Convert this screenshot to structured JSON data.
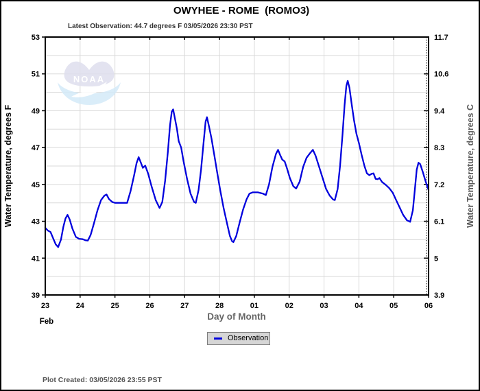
{
  "title": "OWYHEE - ROME  (ROMO3)",
  "subtitle": "Latest Observation: 44.7 degrees F 03/05/2026 23:30 PST",
  "footer": "Plot Created: 03/05/2026 23:55 PST",
  "watermark": "NOAA",
  "legend": {
    "label": "Observation"
  },
  "colors": {
    "line": "#0000dd",
    "grid": "#d9d9d9",
    "axis": "#000000",
    "muted_label": "#666666",
    "legend_bg": "#d6d6d6",
    "legend_border": "#7f7f7f",
    "logo_wings": "#dfdfee",
    "logo_wave": "#d4eaf8"
  },
  "chart_data": {
    "type": "line",
    "title": "OWYHEE - ROME  (ROMO3)",
    "xlabel": "Day of Month",
    "ylabel_left": "Water Temperature, degrees F",
    "ylabel_right": "Water Temperature, degrees C",
    "x_month_label": "Feb",
    "x_tick_labels": [
      "23",
      "24",
      "25",
      "26",
      "27",
      "28",
      "01",
      "02",
      "03",
      "04",
      "05",
      "06"
    ],
    "x_unit": "days since Feb 23 00:00",
    "xlim": [
      0,
      11
    ],
    "ylim_f": [
      39,
      53
    ],
    "y_ticks_f": [
      53,
      51,
      49,
      47,
      45,
      43,
      41,
      39
    ],
    "y_ticks_c": [
      "11.7",
      "10.6",
      "9.4",
      "8.3",
      "7.2",
      "6.1",
      "5",
      "3.9"
    ],
    "grid": true,
    "grid_step_f": 1,
    "legend_position": "bottom-center",
    "series": [
      {
        "name": "Observation",
        "color": "#0000dd",
        "points": [
          [
            0.0,
            42.65
          ],
          [
            0.07,
            42.5
          ],
          [
            0.15,
            42.42
          ],
          [
            0.22,
            42.1
          ],
          [
            0.3,
            41.75
          ],
          [
            0.37,
            41.6
          ],
          [
            0.45,
            42.0
          ],
          [
            0.52,
            42.7
          ],
          [
            0.58,
            43.15
          ],
          [
            0.64,
            43.35
          ],
          [
            0.7,
            43.1
          ],
          [
            0.78,
            42.6
          ],
          [
            0.88,
            42.15
          ],
          [
            0.97,
            42.05
          ],
          [
            1.07,
            42.03
          ],
          [
            1.15,
            41.97
          ],
          [
            1.22,
            41.95
          ],
          [
            1.3,
            42.25
          ],
          [
            1.4,
            42.9
          ],
          [
            1.5,
            43.6
          ],
          [
            1.6,
            44.15
          ],
          [
            1.7,
            44.4
          ],
          [
            1.76,
            44.45
          ],
          [
            1.83,
            44.2
          ],
          [
            1.92,
            44.05
          ],
          [
            2.0,
            44.0
          ],
          [
            2.35,
            44.0
          ],
          [
            2.45,
            44.65
          ],
          [
            2.55,
            45.5
          ],
          [
            2.62,
            46.15
          ],
          [
            2.68,
            46.48
          ],
          [
            2.74,
            46.2
          ],
          [
            2.8,
            45.9
          ],
          [
            2.87,
            46.02
          ],
          [
            2.95,
            45.6
          ],
          [
            3.05,
            44.9
          ],
          [
            3.17,
            44.15
          ],
          [
            3.28,
            43.72
          ],
          [
            3.36,
            44.05
          ],
          [
            3.44,
            45.2
          ],
          [
            3.52,
            46.8
          ],
          [
            3.58,
            48.2
          ],
          [
            3.63,
            48.95
          ],
          [
            3.67,
            49.07
          ],
          [
            3.72,
            48.6
          ],
          [
            3.78,
            48.0
          ],
          [
            3.83,
            47.35
          ],
          [
            3.9,
            47.0
          ],
          [
            3.97,
            46.25
          ],
          [
            4.07,
            45.3
          ],
          [
            4.17,
            44.5
          ],
          [
            4.27,
            44.05
          ],
          [
            4.32,
            44.0
          ],
          [
            4.4,
            44.7
          ],
          [
            4.47,
            45.8
          ],
          [
            4.54,
            47.2
          ],
          [
            4.6,
            48.4
          ],
          [
            4.64,
            48.65
          ],
          [
            4.7,
            48.15
          ],
          [
            4.77,
            47.5
          ],
          [
            4.85,
            46.6
          ],
          [
            4.93,
            45.7
          ],
          [
            5.02,
            44.7
          ],
          [
            5.12,
            43.7
          ],
          [
            5.22,
            42.85
          ],
          [
            5.3,
            42.2
          ],
          [
            5.36,
            41.92
          ],
          [
            5.4,
            41.87
          ],
          [
            5.48,
            42.2
          ],
          [
            5.58,
            42.95
          ],
          [
            5.68,
            43.65
          ],
          [
            5.78,
            44.2
          ],
          [
            5.86,
            44.5
          ],
          [
            5.95,
            44.57
          ],
          [
            6.1,
            44.57
          ],
          [
            6.25,
            44.5
          ],
          [
            6.33,
            44.42
          ],
          [
            6.42,
            45.0
          ],
          [
            6.52,
            45.95
          ],
          [
            6.62,
            46.65
          ],
          [
            6.68,
            46.88
          ],
          [
            6.74,
            46.6
          ],
          [
            6.8,
            46.35
          ],
          [
            6.87,
            46.25
          ],
          [
            6.94,
            45.85
          ],
          [
            7.02,
            45.35
          ],
          [
            7.12,
            44.9
          ],
          [
            7.2,
            44.78
          ],
          [
            7.3,
            45.15
          ],
          [
            7.4,
            45.95
          ],
          [
            7.5,
            46.45
          ],
          [
            7.6,
            46.7
          ],
          [
            7.68,
            46.88
          ],
          [
            7.76,
            46.55
          ],
          [
            7.86,
            45.95
          ],
          [
            7.96,
            45.35
          ],
          [
            8.06,
            44.75
          ],
          [
            8.16,
            44.4
          ],
          [
            8.26,
            44.18
          ],
          [
            8.31,
            44.15
          ],
          [
            8.39,
            44.75
          ],
          [
            8.46,
            46.0
          ],
          [
            8.53,
            47.7
          ],
          [
            8.59,
            49.3
          ],
          [
            8.64,
            50.35
          ],
          [
            8.68,
            50.62
          ],
          [
            8.73,
            50.25
          ],
          [
            8.79,
            49.4
          ],
          [
            8.86,
            48.5
          ],
          [
            8.93,
            47.75
          ],
          [
            9.0,
            47.25
          ],
          [
            9.08,
            46.6
          ],
          [
            9.16,
            46.0
          ],
          [
            9.23,
            45.6
          ],
          [
            9.3,
            45.5
          ],
          [
            9.37,
            45.58
          ],
          [
            9.42,
            45.6
          ],
          [
            9.48,
            45.3
          ],
          [
            9.54,
            45.28
          ],
          [
            9.59,
            45.35
          ],
          [
            9.67,
            45.12
          ],
          [
            9.77,
            44.98
          ],
          [
            9.87,
            44.8
          ],
          [
            9.97,
            44.55
          ],
          [
            10.07,
            44.15
          ],
          [
            10.17,
            43.75
          ],
          [
            10.27,
            43.35
          ],
          [
            10.38,
            43.05
          ],
          [
            10.47,
            42.97
          ],
          [
            10.55,
            43.6
          ],
          [
            10.61,
            44.8
          ],
          [
            10.66,
            45.8
          ],
          [
            10.71,
            46.18
          ],
          [
            10.76,
            46.1
          ],
          [
            10.83,
            45.7
          ],
          [
            10.91,
            45.2
          ],
          [
            11.0,
            44.7
          ]
        ]
      }
    ]
  }
}
